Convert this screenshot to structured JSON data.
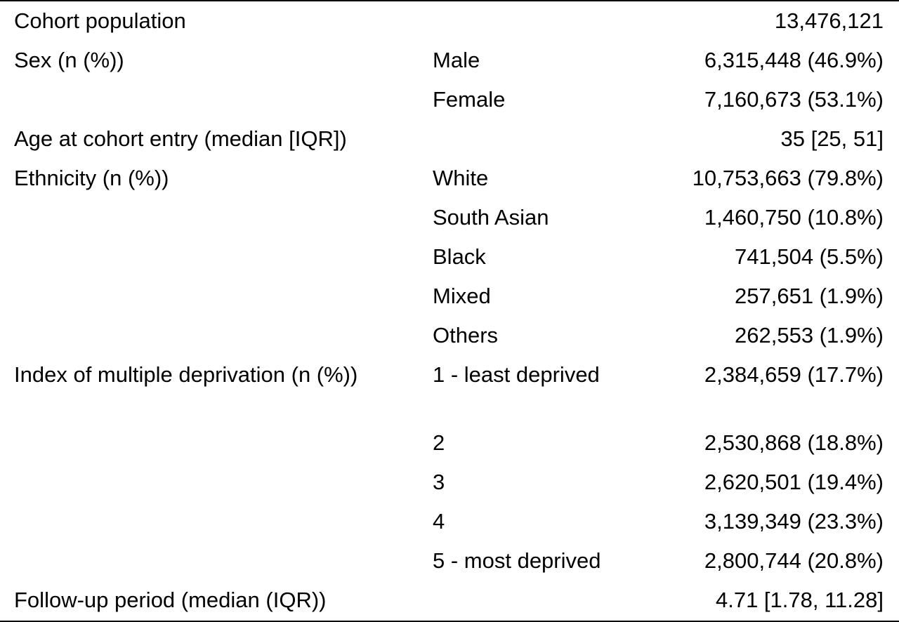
{
  "rows": [
    {
      "label": "Cohort population",
      "category": "",
      "value": "13,476,121"
    },
    {
      "label": "Sex (n (%))",
      "category": "Male",
      "value": "6,315,448 (46.9%)"
    },
    {
      "label": "",
      "category": "Female",
      "value": "7,160,673 (53.1%)"
    },
    {
      "label": "Age at cohort entry (median [IQR])",
      "category": "",
      "value": "35 [25, 51]"
    },
    {
      "label": "Ethnicity (n (%))",
      "category": "White",
      "value": "10,753,663 (79.8%)"
    },
    {
      "label": "",
      "category": "South Asian",
      "value": "1,460,750 (10.8%)"
    },
    {
      "label": "",
      "category": "Black",
      "value": "741,504 (5.5%)"
    },
    {
      "label": "",
      "category": "Mixed",
      "value": "257,651 (1.9%)"
    },
    {
      "label": "",
      "category": "Others",
      "value": "262,553 (1.9%)"
    },
    {
      "label": "Index of multiple deprivation (n (%))",
      "category": "1 - least deprived",
      "value": "2,384,659 (17.7%)"
    },
    {
      "label": "",
      "category": "2",
      "value": "2,530,868 (18.8%)"
    },
    {
      "label": "",
      "category": "3",
      "value": "2,620,501 (19.4%)"
    },
    {
      "label": "",
      "category": "4",
      "value": "3,139,349 (23.3%)"
    },
    {
      "label": "",
      "category": "5 - most deprived",
      "value": "2,800,744 (20.8%)"
    },
    {
      "label": "Follow-up period (median (IQR))",
      "category": "",
      "value": "4.71 [1.78, 11.28]"
    }
  ]
}
